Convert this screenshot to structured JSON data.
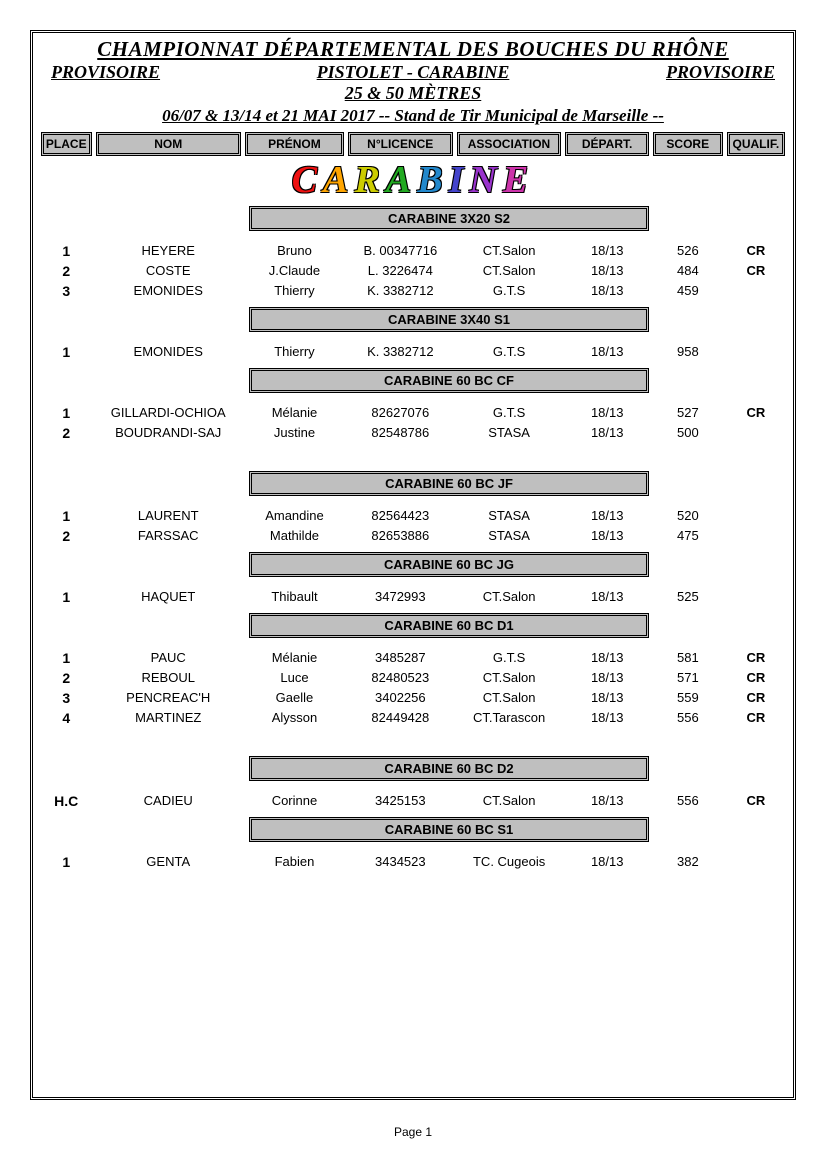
{
  "header": {
    "title": "CHAMPIONNAT DÉPARTEMENTAL DES BOUCHES DU RHÔNE",
    "left": "PROVISOIRE",
    "mid": "PISTOLET - CARABINE",
    "right": "PROVISOIRE",
    "line3": "25 & 50 MÈTRES",
    "line4": "06/07 & 13/14 et 21 MAI 2017   -- Stand de Tir Municipal de Marseille --"
  },
  "columns": {
    "place": "PLACE",
    "nom": "NOM",
    "prenom": "PRÉNOM",
    "licence": "N°LICENCE",
    "assoc": "ASSOCIATION",
    "dep": "DÉPART.",
    "score": "SCORE",
    "qual": "QUALIF."
  },
  "bigword": {
    "letters": [
      "C",
      "A",
      "R",
      "A",
      "B",
      "I",
      "N",
      "E"
    ],
    "colors": [
      "#e11",
      "#ffa500",
      "#cccc00",
      "#22aa22",
      "#2288cc",
      "#4444cc",
      "#9933cc",
      "#cc33aa"
    ]
  },
  "categories": [
    {
      "title": "CARABINE 3X20 S2",
      "rows": [
        {
          "place": "1",
          "nom": "HEYERE",
          "prenom": "Bruno",
          "lic": "B. 00347716",
          "assoc": "CT.Salon",
          "dep": "18/13",
          "score": "526",
          "qual": "CR"
        },
        {
          "place": "2",
          "nom": "COSTE",
          "prenom": "J.Claude",
          "lic": "L. 3226474",
          "assoc": "CT.Salon",
          "dep": "18/13",
          "score": "484",
          "qual": "CR"
        },
        {
          "place": "3",
          "nom": "EMONIDES",
          "prenom": "Thierry",
          "lic": "K. 3382712",
          "assoc": "G.T.S",
          "dep": "18/13",
          "score": "459",
          "qual": ""
        }
      ]
    },
    {
      "title": "CARABINE 3X40 S1",
      "rows": [
        {
          "place": "1",
          "nom": "EMONIDES",
          "prenom": "Thierry",
          "lic": "K. 3382712",
          "assoc": "G.T.S",
          "dep": "18/13",
          "score": "958",
          "qual": ""
        }
      ]
    },
    {
      "title": "CARABINE 60 BC CF",
      "rows": [
        {
          "place": "1",
          "nom": "GILLARDI-OCHIOA",
          "prenom": "Mélanie",
          "lic": "82627076",
          "assoc": "G.T.S",
          "dep": "18/13",
          "score": "527",
          "qual": "CR"
        },
        {
          "place": "2",
          "nom": "BOUDRANDI-SAJ",
          "prenom": "Justine",
          "lic": "82548786",
          "assoc": "STASA",
          "dep": "18/13",
          "score": "500",
          "qual": ""
        }
      ],
      "extra_gap_after": true
    },
    {
      "title": "CARABINE 60 BC JF",
      "rows": [
        {
          "place": "1",
          "nom": "LAURENT",
          "prenom": "Amandine",
          "lic": "82564423",
          "assoc": "STASA",
          "dep": "18/13",
          "score": "520",
          "qual": ""
        },
        {
          "place": "2",
          "nom": "FARSSAC",
          "prenom": "Mathilde",
          "lic": "82653886",
          "assoc": "STASA",
          "dep": "18/13",
          "score": "475",
          "qual": ""
        }
      ]
    },
    {
      "title": "CARABINE 60 BC JG",
      "rows": [
        {
          "place": "1",
          "nom": "HAQUET",
          "prenom": "Thibault",
          "lic": "3472993",
          "assoc": "CT.Salon",
          "dep": "18/13",
          "score": "525",
          "qual": ""
        }
      ]
    },
    {
      "title": "CARABINE 60 BC D1",
      "rows": [
        {
          "place": "1",
          "nom": "PAUC",
          "prenom": "Mélanie",
          "lic": "3485287",
          "assoc": "G.T.S",
          "dep": "18/13",
          "score": "581",
          "qual": "CR"
        },
        {
          "place": "2",
          "nom": "REBOUL",
          "prenom": "Luce",
          "lic": "82480523",
          "assoc": "CT.Salon",
          "dep": "18/13",
          "score": "571",
          "qual": "CR"
        },
        {
          "place": "3",
          "nom": "PENCREAC'H",
          "prenom": "Gaelle",
          "lic": "3402256",
          "assoc": "CT.Salon",
          "dep": "18/13",
          "score": "559",
          "qual": "CR"
        },
        {
          "place": "4",
          "nom": "MARTINEZ",
          "prenom": "Alysson",
          "lic": "82449428",
          "assoc": "CT.Tarascon",
          "dep": "18/13",
          "score": "556",
          "qual": "CR"
        }
      ],
      "extra_gap_after": true
    },
    {
      "title": "CARABINE 60 BC D2",
      "rows": [
        {
          "place": "H.C",
          "nom": "CADIEU",
          "prenom": "Corinne",
          "lic": "3425153",
          "assoc": "CT.Salon",
          "dep": "18/13",
          "score": "556",
          "qual": "CR"
        }
      ]
    },
    {
      "title": "CARABINE 60 BC S1",
      "rows": [
        {
          "place": "1",
          "nom": "GENTA",
          "prenom": "Fabien",
          "lic": "3434523",
          "assoc": "TC. Cugeois",
          "dep": "18/13",
          "score": "382",
          "qual": ""
        }
      ]
    }
  ],
  "footer": {
    "page": "Page 1"
  },
  "style": {
    "header_bg": "#bfbfbf",
    "border_color": "#000000",
    "page_bg": "#ffffff"
  }
}
